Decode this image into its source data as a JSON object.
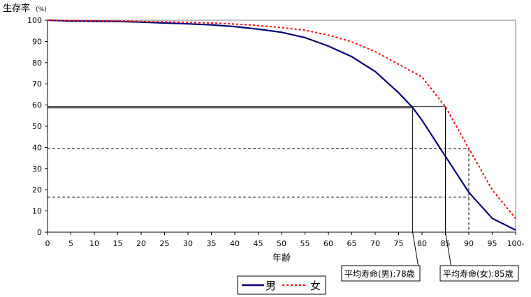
{
  "chart_data": {
    "type": "line",
    "title": "生存率",
    "unit": "(%)",
    "xlabel": "年齢",
    "ylabel": "生存率",
    "xlim": [
      0,
      100
    ],
    "ylim": [
      0,
      100
    ],
    "x_ticks": [
      "0",
      "5",
      "10",
      "15",
      "20",
      "25",
      "30",
      "35",
      "40",
      "45",
      "50",
      "55",
      "60",
      "65",
      "70",
      "75",
      "80",
      "85",
      "90",
      "95",
      "100-"
    ],
    "y_ticks": [
      "0",
      "10",
      "20",
      "30",
      "40",
      "50",
      "60",
      "70",
      "80",
      "90",
      "100"
    ],
    "grid": false,
    "legend": "bottom-center",
    "series": [
      {
        "name": "男",
        "color": "#000080",
        "style": "solid",
        "x": [
          0,
          5,
          10,
          15,
          20,
          25,
          30,
          35,
          40,
          45,
          50,
          55,
          60,
          65,
          70,
          75,
          78,
          80,
          85,
          90,
          95,
          100
        ],
        "y": [
          100,
          99.6,
          99.5,
          99.4,
          99.1,
          98.7,
          98.3,
          97.8,
          97,
          95.8,
          94.3,
          91.8,
          87.8,
          82.8,
          75.8,
          65.8,
          58.8,
          52.8,
          35.8,
          18.8,
          6.5,
          1
        ]
      },
      {
        "name": "女",
        "color": "#ff0000",
        "style": "dashed",
        "x": [
          0,
          5,
          10,
          15,
          20,
          25,
          30,
          35,
          40,
          45,
          50,
          55,
          60,
          65,
          70,
          75,
          80,
          85,
          90,
          95,
          100
        ],
        "y": [
          100,
          99.8,
          99.7,
          99.6,
          99.4,
          99.2,
          99.0,
          98.7,
          98.2,
          97.5,
          96.5,
          95.3,
          93.0,
          89.8,
          85.2,
          79.2,
          73.2,
          59.2,
          39.5,
          20,
          6.5
        ]
      }
    ],
    "reference_lines": [
      {
        "style": "solid",
        "y": 59.3,
        "x_end": 85
      },
      {
        "style": "solid",
        "x": 78,
        "y_top": 58.5
      },
      {
        "style": "solid",
        "x": 85,
        "y_top": 59.3
      },
      {
        "style": "dashed",
        "y": 39.3,
        "x_end": 90
      },
      {
        "style": "dashed",
        "y": 16.5,
        "x_end": 90
      },
      {
        "style": "dashed",
        "x": 90,
        "y_top": 39.3
      }
    ],
    "annotations": [
      {
        "text": "平均寿命(男):78歳",
        "x": 78
      },
      {
        "text": "平均寿命(女):85歳",
        "x": 85
      }
    ]
  }
}
